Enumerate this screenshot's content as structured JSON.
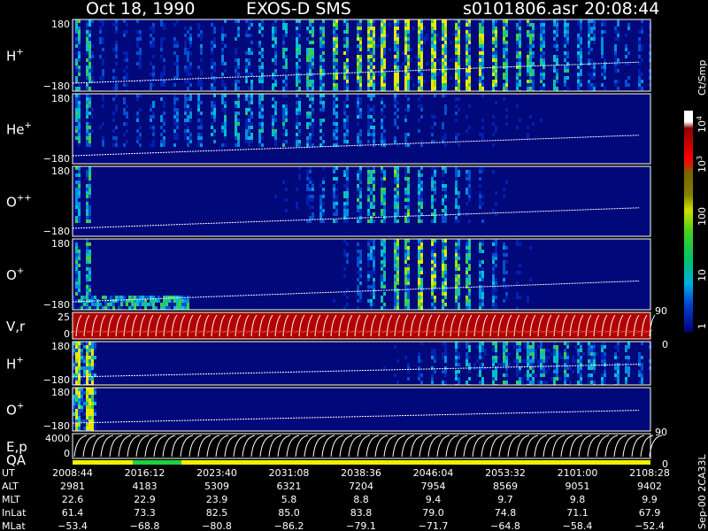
{
  "header": {
    "date": "Oct 18, 1990",
    "instrument": "EXOS-D SMS",
    "file": "s0101806.asr",
    "time": "20:08:44"
  },
  "panels": [
    {
      "label": "H",
      "sup": "+",
      "ticks": [
        "180",
        "−180"
      ]
    },
    {
      "label": "He",
      "sup": "+",
      "ticks": [
        "180",
        "−180"
      ]
    },
    {
      "label": "O",
      "sup": "++",
      "ticks": [
        "180",
        "−180"
      ]
    },
    {
      "label": "O",
      "sup": "+",
      "ticks": [
        "180",
        "−180"
      ]
    },
    {
      "label": "V,r",
      "ticks": [
        "25",
        "0"
      ],
      "right_ticks": [
        "90",
        "0"
      ]
    },
    {
      "label": "H",
      "sup": "+",
      "ticks": [
        "180",
        "−180"
      ]
    },
    {
      "label": "O",
      "sup": "+",
      "ticks": [
        "180",
        "−180"
      ]
    },
    {
      "label": "E,p",
      "ticks": [
        "4000",
        "0"
      ],
      "right_ticks": [
        "90",
        "0"
      ]
    }
  ],
  "qa_label": "QA",
  "colorbar": {
    "title": "Ct/Smp",
    "ticks": [
      {
        "text": "10",
        "sup": "4"
      },
      {
        "text": "10",
        "sup": "3"
      },
      {
        "text": "100"
      },
      {
        "text": "10"
      },
      {
        "text": "1"
      }
    ]
  },
  "footer_code": "Sep-00 2CA33L",
  "table": {
    "rows": [
      {
        "label": "UT",
        "values": [
          "2008:44",
          "2016:12",
          "2023:40",
          "2031:08",
          "2038:36",
          "2046:04",
          "2053:32",
          "2101:00",
          "2108:28"
        ]
      },
      {
        "label": "ALT",
        "values": [
          "2981",
          "4183",
          "5309",
          "6321",
          "7204",
          "7954",
          "8569",
          "9051",
          "9402"
        ]
      },
      {
        "label": "MLT",
        "values": [
          "22.6",
          "22.9",
          "23.9",
          "5.8",
          "8.8",
          "9.4",
          "9.7",
          "9.8",
          "9.9"
        ]
      },
      {
        "label": "InLat",
        "values": [
          "61.4",
          "73.3",
          "82.5",
          "85.0",
          "83.8",
          "79.0",
          "74.8",
          "71.1",
          "67.9"
        ]
      },
      {
        "label": "MLat",
        "values": [
          "−53.4",
          "−68.8",
          "−80.8",
          "−86.2",
          "−79.1",
          "−71.7",
          "−64.8",
          "−58.4",
          "−52.4"
        ]
      }
    ]
  }
}
